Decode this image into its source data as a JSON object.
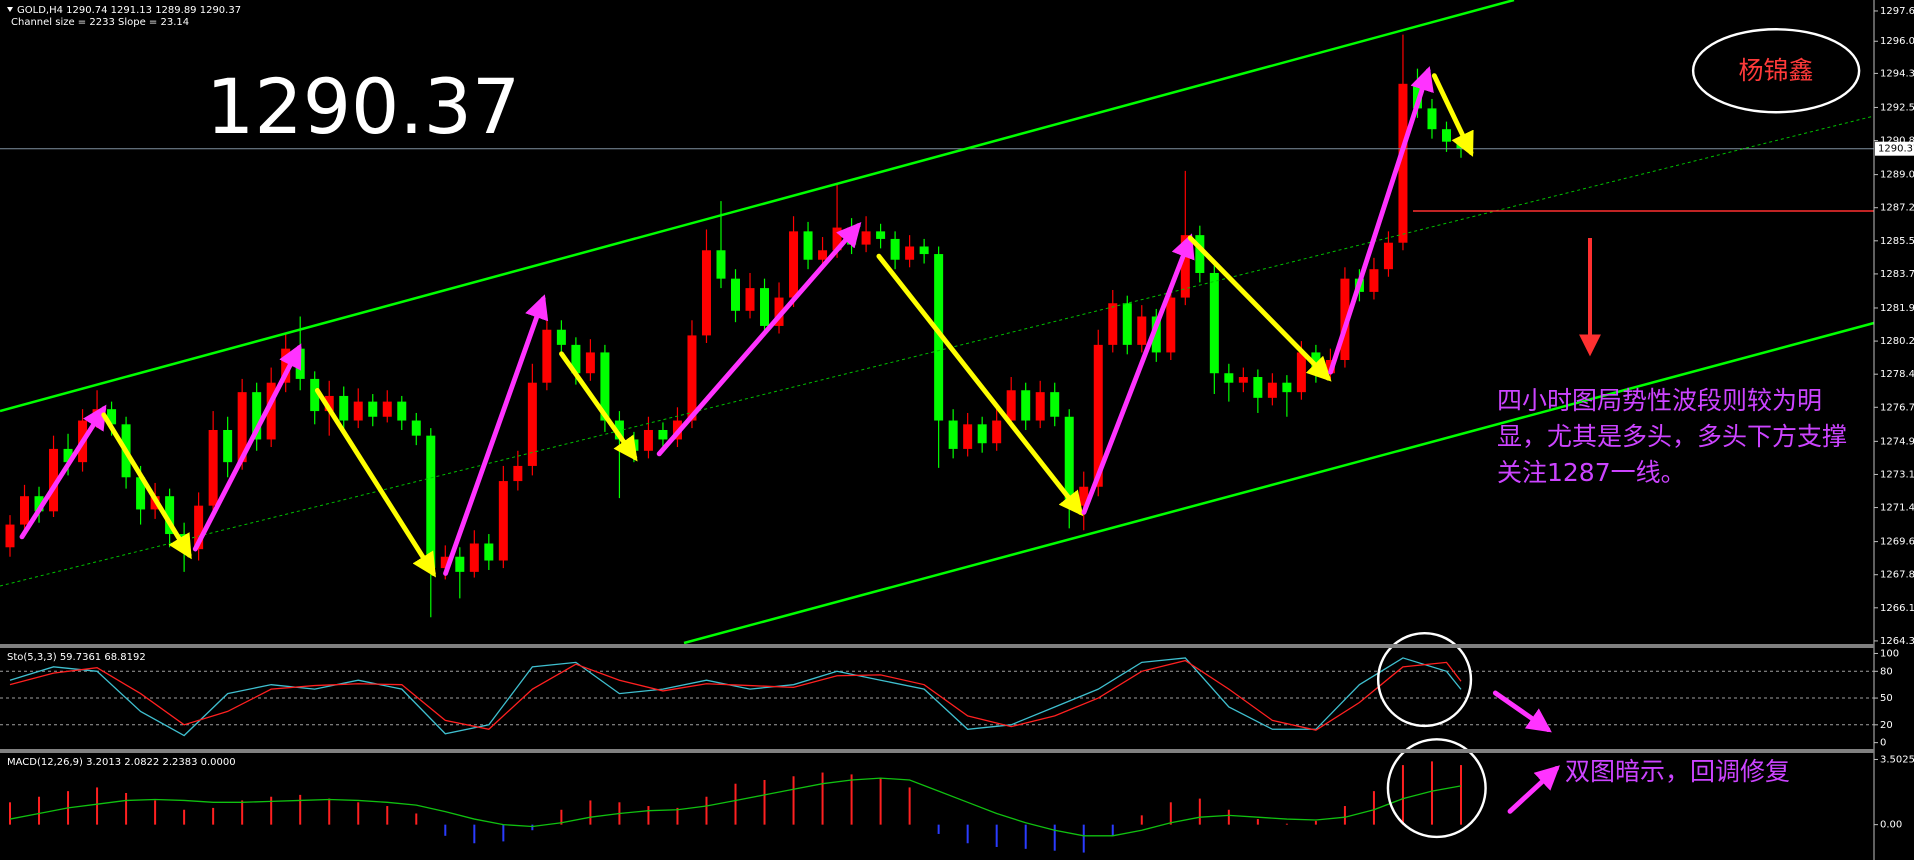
{
  "header": {
    "symbol_line": "GOLD,H4  1290.74 1291.13 1289.89 1290.37",
    "channel_line": "Channel size = 2233  Slope = 23.14"
  },
  "author": "杨锦鑫",
  "notes": {
    "main": [
      "四小时图局势性波段则较为明",
      "显，尤其是多头，多头下方支撑",
      "关注1287一线。"
    ],
    "indicator": "双图暗示，回调修复"
  },
  "chart_data": [
    {
      "type": "candlestick",
      "last_price": 1290.37,
      "colors": {
        "up": "#ff0000",
        "down": "#00ff00",
        "last_price": "#7f8f9f"
      },
      "ylim": [
        1264.24,
        1298.23
      ],
      "yticks": [
        1297.65,
        1296.05,
        1294.35,
        1292.55,
        {
          "value": 1290.8,
          "label": "1290.80"
        },
        {
          "value": 1289,
          "label": "1289.00"
        },
        1287.25,
        {
          "value": 1285.5,
          "label": "1285.50"
        },
        1283.75,
        1281.95,
        {
          "value": 1280.2,
          "label": "1280.20"
        },
        1278.45,
        {
          "value": 1276.7,
          "label": "1276.70"
        },
        {
          "value": 1274.9,
          "label": "1274.90"
        },
        1273.15,
        {
          "value": 1271.4,
          "label": "1271.40"
        },
        {
          "value": 1269.6,
          "label": "1269.60"
        },
        1267.85,
        {
          "value": 1266.1,
          "label": "1266.10"
        },
        1264.35
      ],
      "ohlc": [
        [
          1269.3,
          1271.0,
          1268.8,
          1270.5
        ],
        [
          1270.5,
          1272.6,
          1270.1,
          1272.0
        ],
        [
          1272.0,
          1272.5,
          1270.6,
          1271.2
        ],
        [
          1271.2,
          1275.2,
          1270.9,
          1274.5
        ],
        [
          1274.5,
          1275.3,
          1273.1,
          1273.8
        ],
        [
          1273.8,
          1276.6,
          1273.3,
          1276.0
        ],
        [
          1276.0,
          1277.6,
          1275.6,
          1276.6
        ],
        [
          1276.6,
          1277.0,
          1275.2,
          1275.8
        ],
        [
          1275.8,
          1276.2,
          1272.4,
          1273.0
        ],
        [
          1273.0,
          1273.6,
          1270.5,
          1271.3
        ],
        [
          1271.3,
          1272.7,
          1270.8,
          1272.0
        ],
        [
          1272.0,
          1272.4,
          1269.3,
          1270.0
        ],
        [
          1270.0,
          1270.6,
          1268.0,
          1269.2
        ],
        [
          1269.2,
          1272.2,
          1268.6,
          1271.5
        ],
        [
          1271.5,
          1276.5,
          1271.0,
          1275.5
        ],
        [
          1275.5,
          1276.2,
          1273.0,
          1273.8
        ],
        [
          1273.8,
          1278.2,
          1273.4,
          1277.5
        ],
        [
          1277.5,
          1278.0,
          1274.4,
          1275.0
        ],
        [
          1275.0,
          1278.8,
          1274.6,
          1278.0
        ],
        [
          1278.0,
          1280.6,
          1277.5,
          1279.8
        ],
        [
          1279.8,
          1281.5,
          1277.6,
          1278.2
        ],
        [
          1278.2,
          1278.6,
          1275.8,
          1276.5
        ],
        [
          1276.5,
          1278.1,
          1275.2,
          1277.3
        ],
        [
          1277.3,
          1277.8,
          1275.4,
          1276.0
        ],
        [
          1276.0,
          1277.7,
          1275.6,
          1277.0
        ],
        [
          1277.0,
          1277.4,
          1275.7,
          1276.2
        ],
        [
          1276.2,
          1277.6,
          1275.9,
          1277.0
        ],
        [
          1277.0,
          1277.3,
          1275.5,
          1276.0
        ],
        [
          1276.0,
          1276.4,
          1274.7,
          1275.2
        ],
        [
          1275.2,
          1275.6,
          1265.6,
          1268.2
        ],
        [
          1268.2,
          1269.4,
          1267.6,
          1268.8
        ],
        [
          1268.8,
          1269.3,
          1266.6,
          1268.0
        ],
        [
          1268.0,
          1270.2,
          1267.7,
          1269.5
        ],
        [
          1269.5,
          1270.0,
          1268.1,
          1268.6
        ],
        [
          1268.6,
          1273.6,
          1268.2,
          1272.8
        ],
        [
          1272.8,
          1274.4,
          1272.3,
          1273.6
        ],
        [
          1273.6,
          1279.0,
          1273.1,
          1278.0
        ],
        [
          1278.0,
          1281.6,
          1277.6,
          1280.8
        ],
        [
          1280.8,
          1281.3,
          1279.4,
          1280.0
        ],
        [
          1280.0,
          1280.4,
          1277.9,
          1278.5
        ],
        [
          1278.5,
          1280.3,
          1278.1,
          1279.6
        ],
        [
          1279.6,
          1280.0,
          1275.4,
          1276.0
        ],
        [
          1276.0,
          1276.5,
          1271.9,
          1275.0
        ],
        [
          1275.0,
          1275.4,
          1273.8,
          1274.4
        ],
        [
          1274.4,
          1276.2,
          1274.0,
          1275.5
        ],
        [
          1275.5,
          1275.9,
          1274.5,
          1275.0
        ],
        [
          1275.0,
          1276.7,
          1274.6,
          1276.0
        ],
        [
          1276.0,
          1281.3,
          1275.6,
          1280.5
        ],
        [
          1280.5,
          1286.1,
          1280.1,
          1285.0
        ],
        [
          1285.0,
          1287.6,
          1283.0,
          1283.5
        ],
        [
          1283.5,
          1284.0,
          1281.2,
          1281.8
        ],
        [
          1281.8,
          1283.8,
          1281.4,
          1283.0
        ],
        [
          1283.0,
          1283.5,
          1280.5,
          1281.0
        ],
        [
          1281.0,
          1283.3,
          1280.6,
          1282.5
        ],
        [
          1282.5,
          1286.8,
          1282.0,
          1286.0
        ],
        [
          1286.0,
          1286.5,
          1284.0,
          1284.5
        ],
        [
          1284.5,
          1285.7,
          1284.0,
          1285.0
        ],
        [
          1285.0,
          1288.5,
          1284.6,
          1286.2
        ],
        [
          1286.2,
          1286.7,
          1284.8,
          1285.3
        ],
        [
          1285.3,
          1286.8,
          1284.9,
          1286.0
        ],
        [
          1286.0,
          1286.4,
          1285.1,
          1285.6
        ],
        [
          1285.6,
          1286.0,
          1284.0,
          1284.5
        ],
        [
          1284.5,
          1285.8,
          1284.1,
          1285.2
        ],
        [
          1285.2,
          1285.6,
          1284.3,
          1284.8
        ],
        [
          1284.8,
          1285.2,
          1273.5,
          1276.0
        ],
        [
          1276.0,
          1276.6,
          1274.0,
          1274.5
        ],
        [
          1274.5,
          1276.4,
          1274.1,
          1275.8
        ],
        [
          1275.8,
          1276.2,
          1274.3,
          1274.8
        ],
        [
          1274.8,
          1276.6,
          1274.4,
          1276.0
        ],
        [
          1276.0,
          1278.3,
          1275.6,
          1277.6
        ],
        [
          1277.6,
          1278.0,
          1275.5,
          1276.0
        ],
        [
          1276.0,
          1278.1,
          1275.6,
          1277.5
        ],
        [
          1277.5,
          1278.0,
          1275.7,
          1276.2
        ],
        [
          1276.2,
          1276.6,
          1270.3,
          1271.5
        ],
        [
          1271.5,
          1273.3,
          1270.2,
          1272.5
        ],
        [
          1272.5,
          1280.8,
          1272.0,
          1280.0
        ],
        [
          1280.0,
          1282.9,
          1279.6,
          1282.2
        ],
        [
          1282.2,
          1282.6,
          1279.5,
          1280.0
        ],
        [
          1280.0,
          1282.1,
          1279.6,
          1281.5
        ],
        [
          1281.5,
          1281.9,
          1279.1,
          1279.6
        ],
        [
          1279.6,
          1283.2,
          1279.2,
          1282.5
        ],
        [
          1282.5,
          1289.2,
          1282.1,
          1285.8
        ],
        [
          1285.8,
          1286.3,
          1283.3,
          1283.8
        ],
        [
          1283.8,
          1284.2,
          1277.4,
          1278.5
        ],
        [
          1278.5,
          1279.0,
          1277.0,
          1278.0
        ],
        [
          1278.0,
          1278.8,
          1277.5,
          1278.3
        ],
        [
          1278.3,
          1278.7,
          1276.4,
          1277.2
        ],
        [
          1277.2,
          1278.5,
          1276.8,
          1278.0
        ],
        [
          1278.0,
          1278.4,
          1276.2,
          1277.5
        ],
        [
          1277.5,
          1280.2,
          1277.1,
          1279.6
        ],
        [
          1279.6,
          1280.0,
          1278.0,
          1278.5
        ],
        [
          1278.5,
          1279.8,
          1278.1,
          1279.2
        ],
        [
          1279.2,
          1284.1,
          1278.8,
          1283.5
        ],
        [
          1283.5,
          1284.0,
          1282.3,
          1282.8
        ],
        [
          1282.8,
          1284.6,
          1282.4,
          1284.0
        ],
        [
          1284.0,
          1286.0,
          1283.6,
          1285.4
        ],
        [
          1285.4,
          1296.4,
          1285.0,
          1293.8
        ],
        [
          1293.8,
          1294.6,
          1292.0,
          1292.5
        ],
        [
          1292.5,
          1293.0,
          1290.9,
          1291.4
        ],
        [
          1291.4,
          1291.8,
          1290.2,
          1290.74
        ],
        [
          1290.74,
          1291.13,
          1289.89,
          1290.37
        ]
      ]
    },
    {
      "type": "line",
      "title": "Sto(5,3,3) 59.7361 68.8192",
      "grid": true,
      "ylim": [
        -6,
        105
      ],
      "yticks": [
        100,
        80,
        50,
        20,
        0
      ],
      "x": [
        0,
        3,
        6,
        9,
        12,
        15,
        18,
        21,
        24,
        27,
        30,
        33,
        36,
        39,
        42,
        45,
        48,
        51,
        54,
        57,
        60,
        63,
        66,
        69,
        72,
        75,
        78,
        81,
        84,
        87,
        90,
        93,
        96,
        99,
        100
      ],
      "series": [
        {
          "color": "#3fbfcf",
          "values": [
            70,
            85,
            80,
            35,
            8,
            55,
            65,
            60,
            70,
            60,
            10,
            20,
            85,
            90,
            55,
            60,
            70,
            60,
            65,
            80,
            70,
            60,
            15,
            20,
            40,
            60,
            90,
            95,
            40,
            15,
            15,
            65,
            95,
            80,
            59.7361
          ]
        },
        {
          "color": "#ff2020",
          "values": [
            65,
            78,
            84,
            55,
            20,
            35,
            60,
            64,
            66,
            65,
            25,
            15,
            60,
            88,
            70,
            58,
            66,
            64,
            62,
            75,
            76,
            65,
            30,
            18,
            30,
            50,
            80,
            92,
            60,
            25,
            14,
            45,
            85,
            90,
            68.8192
          ]
        }
      ]
    },
    {
      "type": "macd",
      "title": "MACD(12,26,9) 3.2013 2.0822 2.2383 0.0000",
      "ylim": [
        -1.9,
        3.85
      ],
      "yticks": [
        3.5025,
        {
          "value": 0,
          "label": "0.00"
        }
      ],
      "colors": {
        "positive": "#ff2020",
        "negative": "#2a3cff"
      },
      "x": [
        0,
        2,
        4,
        6,
        8,
        10,
        12,
        14,
        16,
        18,
        20,
        22,
        24,
        26,
        28,
        30,
        32,
        34,
        36,
        38,
        40,
        42,
        44,
        46,
        48,
        50,
        52,
        54,
        56,
        58,
        60,
        62,
        64,
        66,
        68,
        70,
        72,
        74,
        76,
        78,
        80,
        82,
        84,
        86,
        88,
        90,
        92,
        94,
        96,
        98,
        100
      ],
      "histogram": [
        1.2,
        1.5,
        1.8,
        2.0,
        1.7,
        1.3,
        0.8,
        0.9,
        1.3,
        1.5,
        1.6,
        1.4,
        1.2,
        1.0,
        0.6,
        -0.6,
        -1.0,
        -0.9,
        -0.3,
        0.8,
        1.3,
        1.2,
        1.0,
        0.9,
        1.5,
        2.2,
        2.4,
        2.6,
        2.8,
        2.7,
        2.5,
        2.0,
        -0.5,
        -1.0,
        -1.2,
        -1.3,
        -1.4,
        -1.5,
        -0.6,
        0.5,
        1.2,
        1.4,
        0.8,
        0.3,
        0.05,
        0.2,
        1.0,
        1.8,
        3.2,
        3.4,
        3.2013
      ],
      "signal": {
        "color": "#10c010",
        "values": [
          0.3,
          0.6,
          0.9,
          1.1,
          1.3,
          1.35,
          1.3,
          1.2,
          1.2,
          1.25,
          1.3,
          1.35,
          1.3,
          1.2,
          1.05,
          0.7,
          0.3,
          0.0,
          -0.1,
          0.1,
          0.4,
          0.6,
          0.75,
          0.8,
          1.0,
          1.3,
          1.6,
          1.9,
          2.2,
          2.4,
          2.5,
          2.4,
          1.8,
          1.2,
          0.6,
          0.1,
          -0.3,
          -0.6,
          -0.6,
          -0.3,
          0.1,
          0.4,
          0.5,
          0.4,
          0.3,
          0.25,
          0.4,
          0.8,
          1.4,
          1.8,
          2.0822
        ]
      }
    }
  ]
}
